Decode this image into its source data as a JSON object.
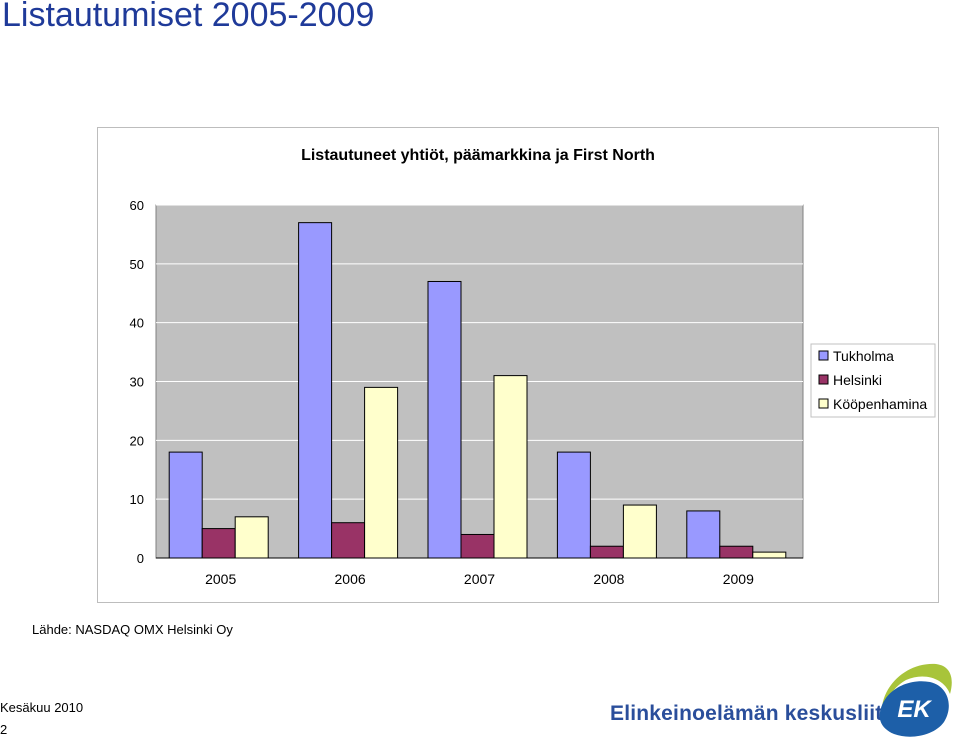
{
  "slide": {
    "title": "Listautumiset 2005-2009",
    "source": "Lähde: NASDAQ OMX Helsinki Oy",
    "date": "Kesäkuu 2010",
    "page_number": "2",
    "organization": "Elinkeinoelämän keskusliitto",
    "logo_text": "EK"
  },
  "colors": {
    "title": "#1f3a99",
    "plot_bg": "#c0c0c0",
    "grid": "#ffffff",
    "logo_blue": "#1d5fa8",
    "logo_green": "#a8c43a"
  },
  "chart_data": {
    "type": "bar",
    "title": "Listautuneet yhtiöt, päämarkkina ja First North",
    "categories": [
      "2005",
      "2006",
      "2007",
      "2008",
      "2009"
    ],
    "series": [
      {
        "name": "Tukholma",
        "color": "#9999ff",
        "values": [
          18,
          57,
          47,
          18,
          8
        ]
      },
      {
        "name": "Helsinki",
        "color": "#993366",
        "values": [
          5,
          6,
          4,
          2,
          2
        ]
      },
      {
        "name": "Kööpenhamina",
        "color": "#ffffcc",
        "values": [
          7,
          29,
          31,
          9,
          1
        ]
      }
    ],
    "ylim": [
      0,
      60
    ],
    "yticks": [
      "0",
      "10",
      "20",
      "30",
      "40",
      "50",
      "60"
    ],
    "grid": true,
    "legend_position": "right"
  }
}
